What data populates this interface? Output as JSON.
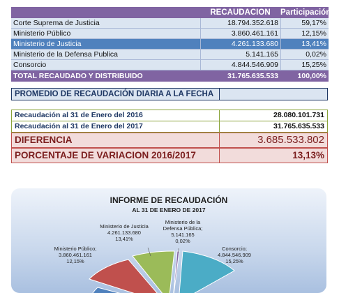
{
  "table": {
    "headers": {
      "recaudacion": "RECAUDACION",
      "participacion": "Participación"
    },
    "rows": [
      {
        "entidad": "Corte Suprema de Justicia",
        "recaudacion": "18.794.352.618",
        "participacion": "59,17%"
      },
      {
        "entidad": "Ministerio Público",
        "recaudacion": "3.860.461.161",
        "participacion": "12,15%"
      },
      {
        "entidad": "Ministerio de Justicia",
        "recaudacion": "4.261.133.680",
        "participacion": "13,41%"
      },
      {
        "entidad": "Ministerio de la Defensa Publica",
        "recaudacion": "5.141.165",
        "participacion": "0,02%"
      },
      {
        "entidad": "Consorcio",
        "recaudacion": "4.844.546.909",
        "participacion": "15,25%"
      }
    ],
    "total": {
      "label": "TOTAL RECAUDADO Y DISTRIBUIDO",
      "recaudacion": "31.765.635.533",
      "participacion": "100,00%"
    }
  },
  "promedio": {
    "label": "PROMEDIO DE RECAUDACIÓN DIARIA A LA FECHA",
    "value": ""
  },
  "comparacion": {
    "r2016": {
      "label": "Recaudación al 31 de Enero del 2016",
      "value": "28.080.101.731"
    },
    "r2017": {
      "label": "Recaudación al 31 de Enero del 2017",
      "value": "31.765.635.533"
    },
    "diferencia": {
      "label": "DIFERENCIA",
      "value": "3.685.533.802"
    },
    "variacion": {
      "label": "PORCENTAJE DE VARIACION 2016/2017",
      "value": "13,13%"
    }
  },
  "chart": {
    "title": "INFORME DE RECAUDACIÓN",
    "subtitle": "AL 31 DE ENERO DE 2017",
    "labels": {
      "justicia": [
        "Ministerio de Justicia",
        "4.261.133.680",
        "13,41%"
      ],
      "defensa": [
        "Ministerio de la",
        "Defensa Pública;",
        "5.141.165",
        "0,02%"
      ],
      "publico": [
        "Ministerio Público;",
        "3.860.461.161",
        "12,15%"
      ],
      "consorcio": [
        "Consorcio;",
        "4.844.546.909",
        "15,25%"
      ]
    },
    "colors": {
      "corte": "#4f81bd",
      "publico": "#c0504d",
      "justicia": "#9bbb59",
      "defensa": "#8064a2",
      "consorcio": "#4bacc6"
    }
  },
  "chart_data": {
    "type": "pie",
    "title": "INFORME DE RECAUDACIÓN",
    "subtitle": "AL 31 DE ENERO DE 2017",
    "categories": [
      "Corte Suprema de Justicia",
      "Ministerio Público",
      "Ministerio de Justicia",
      "Ministerio de la Defensa Pública",
      "Consorcio"
    ],
    "values": [
      18794352618,
      3860461161,
      4261133680,
      5141165,
      4844546909
    ],
    "percentages": [
      59.17,
      12.15,
      13.41,
      0.02,
      15.25
    ]
  }
}
